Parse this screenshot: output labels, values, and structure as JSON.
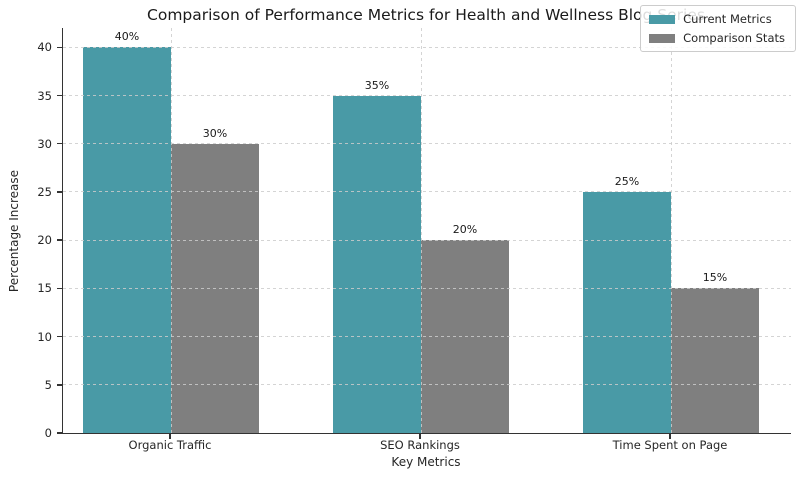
{
  "figure": {
    "background": "#ffffff",
    "text_color": "#262626",
    "spine_color": "#333333",
    "grid_color": "#cccccc"
  },
  "chart_data": {
    "type": "bar",
    "title": "Comparison of Performance Metrics for Health and Wellness Blog Series",
    "xlabel": "Key Metrics",
    "ylabel": "Percentage Increase",
    "categories": [
      "Organic Traffic",
      "SEO Rankings",
      "Time Spent on Page"
    ],
    "series": [
      {
        "name": "Current Metrics",
        "color": "#499AA6",
        "values": [
          40,
          35,
          25
        ],
        "labels": [
          "40%",
          "35%",
          "25%"
        ]
      },
      {
        "name": "Comparison Stats",
        "color": "#7F7F7F",
        "values": [
          30,
          20,
          15
        ],
        "labels": [
          "30%",
          "20%",
          "15%"
        ]
      }
    ],
    "ylim": [
      0,
      42
    ],
    "yticks": [
      0,
      5,
      10,
      15,
      20,
      25,
      30,
      35,
      40
    ],
    "grid": "both, dashed, drawn above bars",
    "legend_position": "upper right"
  }
}
